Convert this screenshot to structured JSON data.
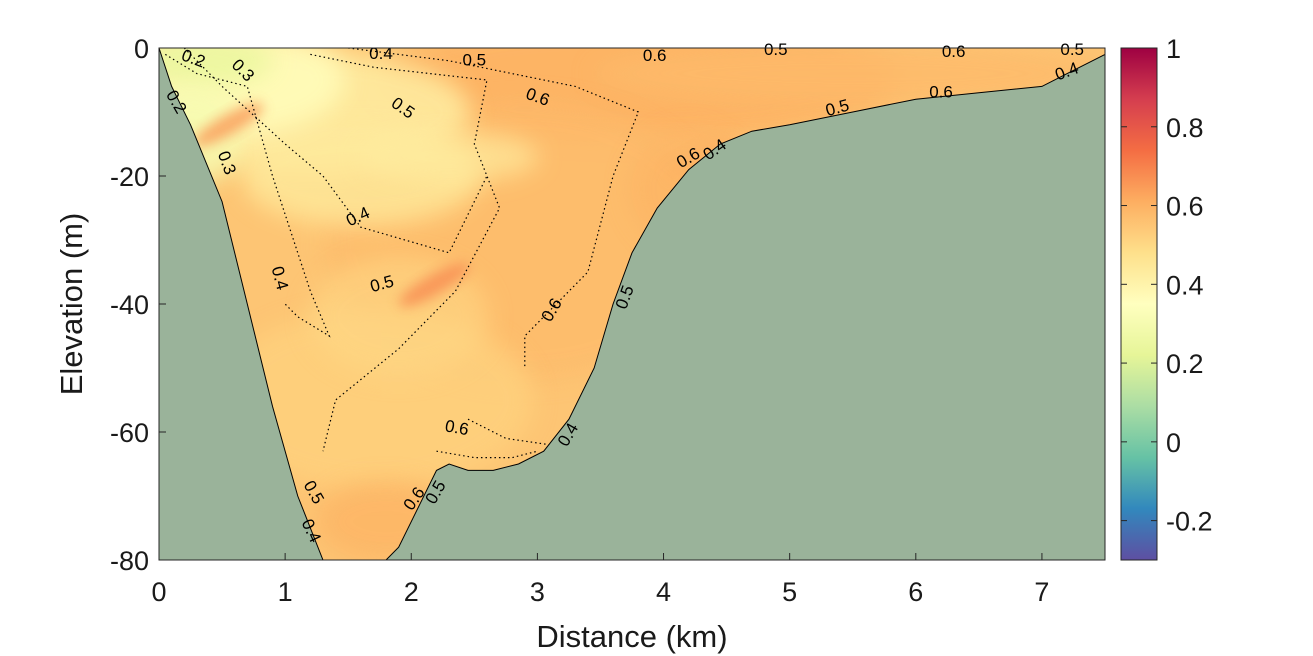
{
  "chart_data": {
    "type": "heatmap",
    "title": "",
    "xlabel": "Distance (km)",
    "ylabel": "Elevation (m)",
    "xlim": [
      0,
      7.5
    ],
    "ylim": [
      -80,
      0
    ],
    "x_ticks": [
      0,
      1,
      2,
      3,
      4,
      5,
      6,
      7
    ],
    "y_ticks": [
      0,
      -20,
      -40,
      -60,
      -80
    ],
    "colorbar": {
      "clim": [
        -0.3,
        1
      ],
      "ticks": [
        "1",
        "0.8",
        "0.6",
        "0.4",
        "0.2",
        "0",
        "-0.2"
      ],
      "tick_values": [
        1,
        0.8,
        0.6,
        0.4,
        0.2,
        0,
        -0.2
      ],
      "colormap": "spectral"
    },
    "grid": false,
    "land_color": "#9ab39a",
    "bathymetry": {
      "x": [
        0,
        0.1,
        0.25,
        0.5,
        0.7,
        0.9,
        1.1,
        1.3,
        1.5,
        1.75,
        1.9,
        2.05,
        2.2,
        2.3,
        2.45,
        2.65,
        2.85,
        3.05,
        3.25,
        3.45,
        3.6,
        3.75,
        3.95,
        4.2,
        4.45,
        4.7,
        5.0,
        5.5,
        6.0,
        6.5,
        7.0,
        7.2,
        7.5
      ],
      "depth": [
        0,
        -6,
        -12,
        -24,
        -40,
        -56,
        -70,
        -80,
        -81,
        -81,
        -78,
        -72,
        -66,
        -65,
        -66,
        -66,
        -65,
        -63,
        -58,
        -50,
        -40,
        -32,
        -25,
        -19,
        -15,
        -13,
        -12,
        -10,
        -8,
        -7,
        -6,
        -4,
        -1
      ]
    },
    "contour_labels": [
      {
        "x": 0.27,
        "y": -1.8,
        "label": "0.2",
        "angle": 20
      },
      {
        "x": 0.13,
        "y": -8.5,
        "label": "0.2",
        "angle": 60
      },
      {
        "x": 0.66,
        "y": -3.6,
        "label": "0.3",
        "angle": 45
      },
      {
        "x": 0.53,
        "y": -18,
        "label": "0.3",
        "angle": 70
      },
      {
        "x": 1.76,
        "y": -1.0,
        "label": "0.4",
        "angle": 0
      },
      {
        "x": 1.93,
        "y": -9.5,
        "label": "0.5",
        "angle": 35
      },
      {
        "x": 1.58,
        "y": -26.5,
        "label": "0.4",
        "angle": -25
      },
      {
        "x": 0.95,
        "y": -36,
        "label": "0.4",
        "angle": 75
      },
      {
        "x": 1.77,
        "y": -37,
        "label": "0.5",
        "angle": -15
      },
      {
        "x": 2.5,
        "y": -2,
        "label": "0.5",
        "angle": 0
      },
      {
        "x": 3.0,
        "y": -7.8,
        "label": "0.6",
        "angle": 20
      },
      {
        "x": 3.93,
        "y": -1.3,
        "label": "0.6",
        "angle": 0
      },
      {
        "x": 4.89,
        "y": -0.4,
        "label": "0.5",
        "angle": 0
      },
      {
        "x": 6.3,
        "y": -0.7,
        "label": "0.6",
        "angle": 0
      },
      {
        "x": 7.24,
        "y": -0.4,
        "label": "0.5",
        "angle": 0
      },
      {
        "x": 7.2,
        "y": -3.8,
        "label": "0.4",
        "angle": -20
      },
      {
        "x": 6.2,
        "y": -7.0,
        "label": "0.6",
        "angle": 0
      },
      {
        "x": 5.38,
        "y": -9.5,
        "label": "0.5",
        "angle": -15
      },
      {
        "x": 4.2,
        "y": -17.3,
        "label": "0.6",
        "angle": -30
      },
      {
        "x": 4.41,
        "y": -16.0,
        "label": "0.4",
        "angle": -35
      },
      {
        "x": 3.7,
        "y": -39,
        "label": "0.5",
        "angle": -70
      },
      {
        "x": 3.12,
        "y": -41,
        "label": "0.6",
        "angle": -60
      },
      {
        "x": 2.36,
        "y": -59.5,
        "label": "0.6",
        "angle": 10
      },
      {
        "x": 3.25,
        "y": -60.5,
        "label": "0.4",
        "angle": -60
      },
      {
        "x": 1.22,
        "y": -69.5,
        "label": "0.5",
        "angle": 60
      },
      {
        "x": 1.2,
        "y": -75.5,
        "label": "0.4",
        "angle": 65
      },
      {
        "x": 2.03,
        "y": -70.5,
        "label": "0.6",
        "angle": -55
      },
      {
        "x": 2.2,
        "y": -69.5,
        "label": "0.5",
        "angle": -60
      }
    ],
    "contours": [
      {
        "level": "0.4",
        "x": [
          0.2,
          0.5,
          1.0,
          1.3,
          1.6,
          2.3,
          2.6
        ],
        "y": [
          0,
          -6,
          -15,
          -20,
          -28,
          -32,
          -20
        ]
      },
      {
        "level": "0.3",
        "x": [
          0.05,
          0.3,
          0.7,
          0.9,
          1.2,
          1.35,
          1.1,
          1.0
        ],
        "y": [
          -1,
          -4,
          -6,
          -20,
          -38,
          -45,
          -42,
          -40
        ]
      },
      {
        "level": "0.5",
        "x": [
          1.2,
          1.7,
          2.6,
          2.5,
          2.7,
          2.35,
          1.9,
          1.4,
          1.3
        ],
        "y": [
          -1,
          -3,
          -5,
          -15,
          -25,
          -38,
          -47,
          -55,
          -63
        ]
      },
      {
        "level": "0.6",
        "x": [
          1.5,
          2.3,
          3.3,
          3.8,
          3.6,
          3.4,
          2.9,
          2.9
        ],
        "y": [
          0,
          -2,
          -6,
          -10,
          -20,
          -35,
          -45,
          -50
        ]
      },
      {
        "level": "0.6",
        "x": [
          2.45,
          2.75,
          3.1
        ],
        "y": [
          -58,
          -61,
          -62
        ]
      },
      {
        "level": "0.5",
        "x": [
          2.2,
          2.5,
          2.8,
          3.0
        ],
        "y": [
          -63,
          -64,
          -64,
          -63
        ]
      }
    ],
    "hotspots": [
      {
        "x": 2.18,
        "y": -37,
        "value": 0.68
      },
      {
        "x": 0.55,
        "y": -12,
        "value": 0.65
      },
      {
        "x": 4.3,
        "y": -17,
        "value": 0.6
      }
    ]
  }
}
